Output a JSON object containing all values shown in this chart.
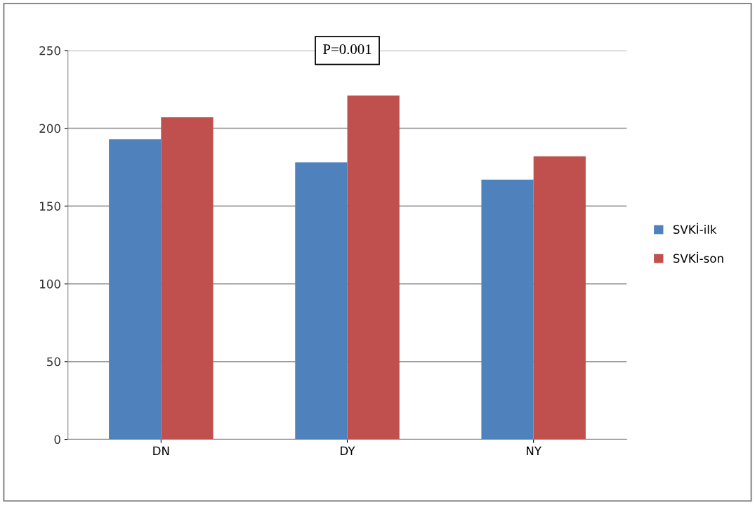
{
  "chart_data": {
    "type": "bar",
    "categories": [
      "DN",
      "DY",
      "NY"
    ],
    "series": [
      {
        "name": "SVKİ-ilk",
        "color": "#4f81bd",
        "values": [
          193,
          178,
          167
        ]
      },
      {
        "name": "SVKİ-son",
        "color": "#c0504d",
        "values": [
          207,
          221,
          182
        ]
      }
    ],
    "ylim": [
      0,
      250
    ],
    "yticks": [
      0,
      50,
      100,
      150,
      200,
      250
    ],
    "grid": "y",
    "legend": "right",
    "annotations": [
      "P=0.001"
    ]
  }
}
